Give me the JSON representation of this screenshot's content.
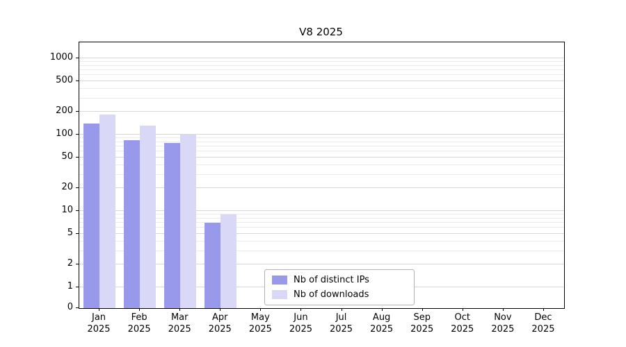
{
  "chart_data": {
    "type": "bar",
    "title": "V8 2025",
    "x_months": [
      "Jan",
      "Feb",
      "Mar",
      "Apr",
      "May",
      "Jun",
      "Jul",
      "Aug",
      "Sep",
      "Oct",
      "Nov",
      "Dec"
    ],
    "x_year": "2025",
    "series": [
      {
        "name": "Nb of distinct IPs",
        "color": "#9999ec",
        "values": [
          140,
          85,
          78,
          7,
          0,
          0,
          0,
          0,
          0,
          0,
          0,
          0
        ]
      },
      {
        "name": "Nb of downloads",
        "color": "#d9d9f7",
        "values": [
          185,
          130,
          100,
          9,
          0,
          0,
          0,
          0,
          0,
          0,
          0,
          0
        ]
      }
    ],
    "y_ticks": [
      0,
      1,
      2,
      5,
      10,
      20,
      50,
      100,
      200,
      500,
      1000
    ],
    "y_scale": "symlog",
    "ylim": [
      0,
      1000
    ],
    "grid": true,
    "legend_position": "lower center"
  }
}
